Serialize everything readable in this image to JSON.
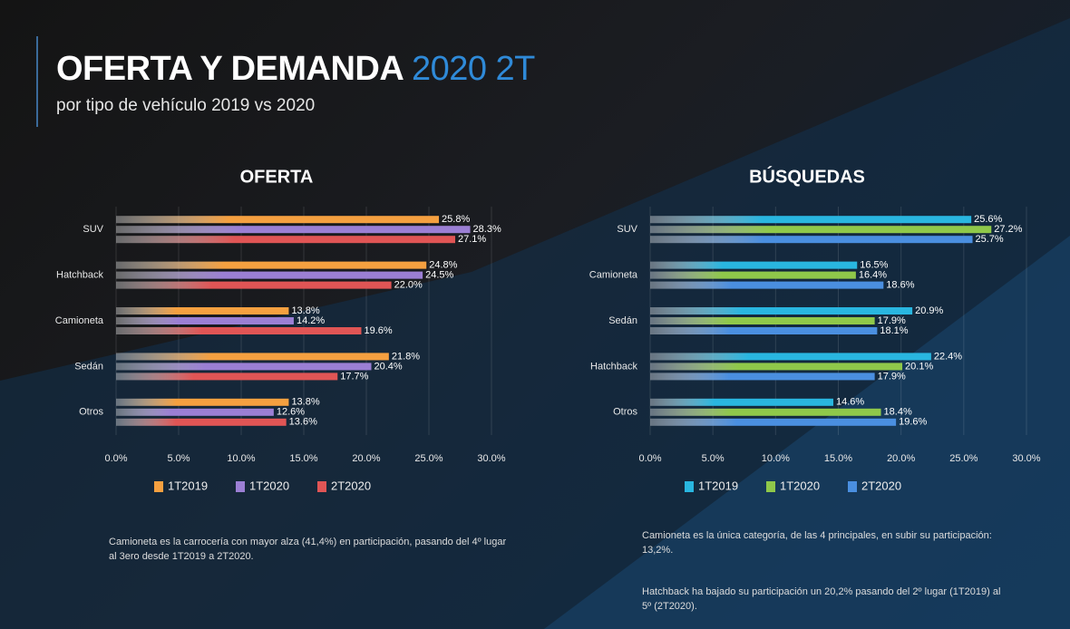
{
  "header": {
    "title": "OFERTA Y DEMANDA",
    "title_highlight": "2020 2T",
    "subtitle": "por tipo de vehículo 2019 vs 2020"
  },
  "chart_data": [
    {
      "type": "bar",
      "orientation": "horizontal",
      "title": "OFERTA",
      "categories": [
        "SUV",
        "Hatchback",
        "Camioneta",
        "Sedán",
        "Otros"
      ],
      "series": [
        {
          "name": "1T2019",
          "color": "#f5a040",
          "values": [
            25.8,
            24.8,
            13.8,
            21.8,
            13.8
          ],
          "value_labels": [
            "25.8%",
            "24.8%",
            "13.8%",
            "21.8%",
            "13.8%"
          ]
        },
        {
          "name": "1T2020",
          "color": "#9b7fd4",
          "values": [
            28.3,
            24.5,
            14.2,
            20.4,
            12.6
          ],
          "value_labels": [
            "28.3%",
            "24.5%",
            "14.2%",
            "20.4%",
            "12.6%"
          ]
        },
        {
          "name": "2T2020",
          "color": "#e05555",
          "values": [
            27.1,
            22.0,
            19.6,
            17.7,
            13.6
          ],
          "value_labels": [
            "27.1%",
            "22.0%",
            "19.6%",
            "17.7%",
            "13.6%"
          ]
        }
      ],
      "xlim": [
        0,
        30
      ],
      "xticks": [
        {
          "value": 0,
          "label": "0.0%"
        },
        {
          "value": 5,
          "label": "5.0%"
        },
        {
          "value": 10,
          "label": "10.0%"
        },
        {
          "value": 15,
          "label": "15.0%"
        },
        {
          "value": 20,
          "label": "20.0%"
        },
        {
          "value": 25,
          "label": "25.0%"
        },
        {
          "value": 30,
          "label": "30.0%"
        }
      ],
      "grid": true,
      "legend": "bottom"
    },
    {
      "type": "bar",
      "orientation": "horizontal",
      "title": "BÚSQUEDAS",
      "categories": [
        "SUV",
        "Camioneta",
        "Sedán",
        "Hatchback",
        "Otros"
      ],
      "series": [
        {
          "name": "1T2019",
          "color": "#29b6e0",
          "values": [
            25.6,
            16.5,
            20.9,
            22.4,
            14.6
          ],
          "value_labels": [
            "25.6%",
            "16.5%",
            "20.9%",
            "22.4%",
            "14.6%"
          ]
        },
        {
          "name": "1T2020",
          "color": "#8fc84a",
          "values": [
            27.2,
            16.4,
            17.9,
            20.1,
            18.4
          ],
          "value_labels": [
            "27.2%",
            "16.4%",
            "17.9%",
            "20.1%",
            "18.4%"
          ]
        },
        {
          "name": "2T2020",
          "color": "#4a8fe0",
          "values": [
            25.7,
            18.6,
            18.1,
            17.9,
            19.6
          ],
          "value_labels": [
            "25.7%",
            "18.6%",
            "18.1%",
            "17.9%",
            "19.6%"
          ]
        }
      ],
      "xlim": [
        0,
        30
      ],
      "xticks": [
        {
          "value": 0,
          "label": "0.0%"
        },
        {
          "value": 5,
          "label": "5.0%"
        },
        {
          "value": 10,
          "label": "10.0%"
        },
        {
          "value": 15,
          "label": "15.0%"
        },
        {
          "value": 20,
          "label": "20.0%"
        },
        {
          "value": 25,
          "label": "25.0%"
        },
        {
          "value": 30,
          "label": "30.0%"
        }
      ],
      "grid": true,
      "legend": "bottom"
    }
  ],
  "notes": [
    [
      "Camioneta es la carrocería con mayor alza (41,4%) en participación, pasando del 4º lugar al 3ero desde 1T2019 a 2T2020."
    ],
    [
      "Camioneta es la única categoría, de las 4 principales, en subir su participación: 13,2%.",
      "Hatchback ha bajado su participación un 20,2% pasando del 2º lugar (1T2019) al 5º (2T2020)."
    ]
  ]
}
